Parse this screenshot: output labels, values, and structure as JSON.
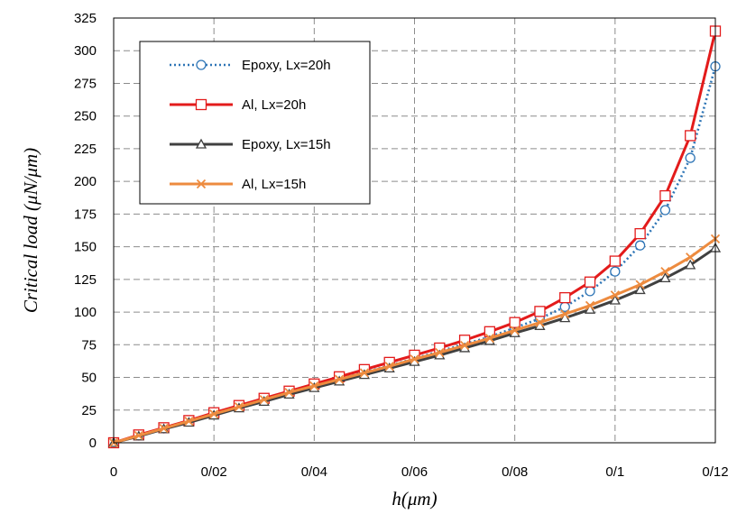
{
  "chart_data": {
    "type": "line",
    "title": "",
    "xlabel": "h(μm)",
    "ylabel": "Critical load (μN/μm)",
    "xlim": [
      0,
      0.12
    ],
    "ylim": [
      0,
      325
    ],
    "x_ticks": [
      0,
      0.02,
      0.04,
      0.06,
      0.08,
      0.1,
      0.12
    ],
    "x_tick_labels": [
      "0",
      "0/02",
      "0/04",
      "0/06",
      "0/08",
      "0/1",
      "0/12"
    ],
    "y_ticks": [
      0,
      25,
      50,
      75,
      100,
      125,
      150,
      175,
      200,
      225,
      250,
      275,
      300,
      325
    ],
    "y_tick_labels": [
      "0",
      "25",
      "50",
      "75",
      "100",
      "125",
      "150",
      "175",
      "200",
      "225",
      "250",
      "275",
      "300",
      "325"
    ],
    "grid": true,
    "legend_position": "top-left",
    "x": [
      0,
      0.005,
      0.01,
      0.015,
      0.02,
      0.025,
      0.03,
      0.035,
      0.04,
      0.045,
      0.05,
      0.055,
      0.06,
      0.065,
      0.07,
      0.075,
      0.08,
      0.085,
      0.09,
      0.095,
      0.1,
      0.105,
      0.11,
      0.115,
      0.12
    ],
    "series": [
      {
        "name": "Epoxy, Lx=20h",
        "color": "#2e75b6",
        "line_style": "dotted",
        "marker": "circle",
        "values": [
          0,
          5.5,
          11,
          16.5,
          22,
          27.5,
          33,
          38,
          43.5,
          49,
          54,
          59,
          64.5,
          70,
          75.5,
          81,
          88,
          95,
          104,
          116,
          131,
          151,
          178,
          218,
          288
        ]
      },
      {
        "name": "Al,  Lx=20h",
        "color": "#e31b1b",
        "line_style": "solid",
        "marker": "square",
        "values": [
          0,
          6,
          11.5,
          17,
          23,
          28.5,
          34,
          39.5,
          45,
          50.5,
          56,
          61.5,
          67,
          72.5,
          78.5,
          85,
          92,
          100.5,
          111,
          123,
          139,
          160,
          189,
          235,
          315
        ]
      },
      {
        "name": "Epoxy, Lx=15h",
        "color": "#404040",
        "line_style": "solid",
        "marker": "triangle",
        "values": [
          0,
          5,
          10.5,
          15.5,
          21,
          26.5,
          31.5,
          37,
          42,
          47,
          52,
          57,
          62,
          67,
          72.5,
          78,
          84,
          89.5,
          95.5,
          102,
          109,
          117,
          126,
          136,
          149
        ]
      },
      {
        "name": "Al,  Lx=15h",
        "color": "#ed8b3f",
        "line_style": "solid",
        "marker": "x",
        "values": [
          0,
          5.5,
          11,
          16.5,
          22,
          27.5,
          33,
          38.5,
          43.5,
          48.5,
          53.5,
          58.5,
          64,
          69,
          74.5,
          80,
          86,
          92,
          98.5,
          105,
          113,
          121,
          131,
          142,
          156
        ]
      }
    ]
  }
}
